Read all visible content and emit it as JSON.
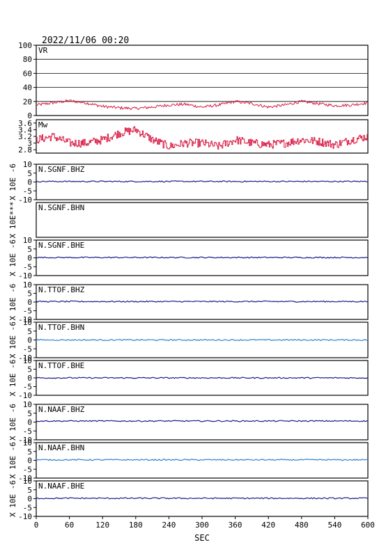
{
  "header": {
    "datetime": "2022/11/06 00:20"
  },
  "colors": {
    "frame": "#000000",
    "vr_line": "#d81b43",
    "mw_line": "#d81b43",
    "dark_trace": "#1a1a8c",
    "light_trace": "#2c7fd0",
    "grid": "#000000"
  },
  "x_axis": {
    "label": "SEC",
    "ticks": [
      "0",
      "60",
      "120",
      "180",
      "240",
      "300",
      "360",
      "420",
      "480",
      "540",
      "600"
    ],
    "range": [
      0,
      600
    ]
  },
  "chart_data": [
    {
      "type": "line",
      "name_label": "VR",
      "ylim": [
        0,
        100
      ],
      "y_ticks": [
        "100",
        "80",
        "60",
        "40",
        "20",
        "0"
      ],
      "grid": true,
      "approx_values": {
        "x": [
          0,
          30,
          60,
          90,
          120,
          150,
          180,
          210,
          240,
          270,
          300,
          330,
          360,
          390,
          420,
          450,
          480,
          510,
          540,
          570,
          600
        ],
        "y": [
          15,
          18,
          21,
          18,
          13,
          11,
          10,
          12,
          15,
          16,
          12,
          15,
          20,
          17,
          12,
          15,
          20,
          17,
          14,
          15,
          18
        ]
      }
    },
    {
      "type": "line",
      "name_label": "Mw",
      "ylim": [
        2.7,
        3.7
      ],
      "y_ticks": [
        "3.6",
        "3.4",
        "3.2",
        "3",
        "2.8"
      ],
      "approx_values": {
        "x": [
          0,
          30,
          60,
          90,
          120,
          150,
          180,
          210,
          240,
          270,
          300,
          330,
          360,
          390,
          420,
          450,
          480,
          510,
          540,
          570,
          600
        ],
        "y": [
          3.1,
          3.2,
          3.0,
          3.0,
          3.1,
          3.3,
          3.4,
          3.1,
          2.9,
          3.0,
          3.0,
          2.9,
          3.1,
          3.0,
          2.95,
          3.0,
          3.1,
          3.05,
          2.95,
          3.1,
          3.2
        ]
      }
    },
    {
      "type": "line",
      "station": "N.SGNF.BHZ",
      "ylabel": "X 10E -6",
      "ylim": [
        -10,
        10
      ],
      "y_ticks": [
        "10",
        "5",
        "0",
        "-5",
        "-10"
      ],
      "level": 0.3,
      "color": "dark"
    },
    {
      "type": "line",
      "station": "N.SGNF.BHN",
      "ylabel": "X 10E***",
      "ylim": [
        -10,
        10
      ],
      "y_ticks": [],
      "level": null,
      "color": "none"
    },
    {
      "type": "line",
      "station": "N.SGNF.BHE",
      "ylabel": "X 10E -6",
      "ylim": [
        -10,
        10
      ],
      "y_ticks": [
        "10",
        "5",
        "0",
        "-5",
        "-10"
      ],
      "level": 0.2,
      "color": "dark"
    },
    {
      "type": "line",
      "station": "N.TTOF.BHZ",
      "ylabel": "X 10E -6",
      "ylim": [
        -10,
        10
      ],
      "y_ticks": [
        "10",
        "5",
        "0",
        "-5",
        "-10"
      ],
      "level": 0.3,
      "color": "dark"
    },
    {
      "type": "line",
      "station": "N.TTOF.BHN",
      "ylabel": "X 10E -6",
      "ylim": [
        -10,
        10
      ],
      "y_ticks": [
        "10",
        "5",
        "0",
        "-5",
        "-10"
      ],
      "level": 0.0,
      "color": "light"
    },
    {
      "type": "line",
      "station": "N.TTOF.BHE",
      "ylabel": "X 10E -6",
      "ylim": [
        -10,
        10
      ],
      "y_ticks": [
        "10",
        "5",
        "0",
        "-5",
        "-10"
      ],
      "level": 0.0,
      "color": "dark"
    },
    {
      "type": "line",
      "station": "N.NAAF.BHZ",
      "ylabel": "X 10E -6",
      "ylim": [
        -10,
        10
      ],
      "y_ticks": [
        "10",
        "5",
        "0",
        "-5",
        "-10"
      ],
      "level": 0.6,
      "color": "dark"
    },
    {
      "type": "line",
      "station": "N.NAAF.BHN",
      "ylabel": "X 10E -6",
      "ylim": [
        -10,
        10
      ],
      "y_ticks": [
        "10",
        "5",
        "0",
        "-5",
        "-10"
      ],
      "level": 0.3,
      "color": "light"
    },
    {
      "type": "line",
      "station": "N.NAAF.BHE",
      "ylabel": "X 10E -6",
      "ylim": [
        -10,
        10
      ],
      "y_ticks": [
        "10",
        "5",
        "0",
        "-5",
        "-10"
      ],
      "level": 0.2,
      "color": "dark"
    }
  ]
}
